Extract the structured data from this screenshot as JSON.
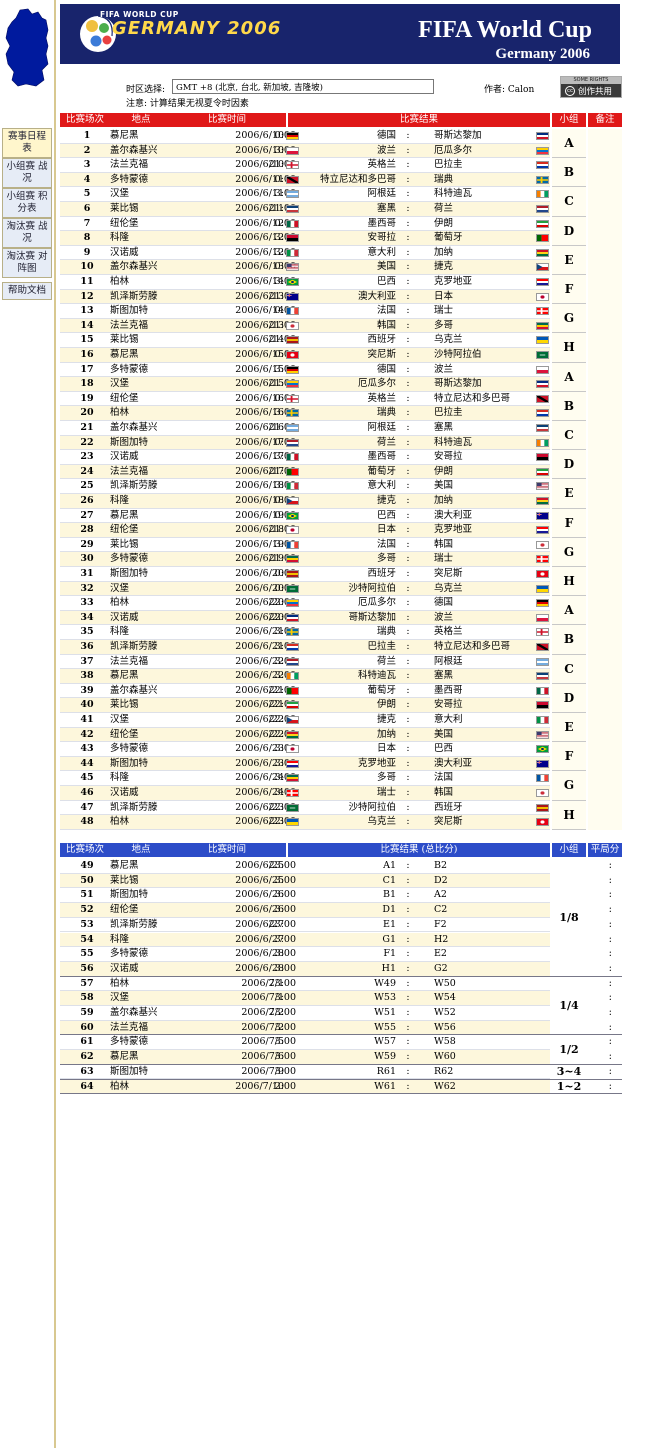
{
  "sidebar": {
    "items": [
      {
        "label": "赛事日程表",
        "active": true
      },
      {
        "label": "小组赛 战况"
      },
      {
        "label": "小组赛 积分表"
      },
      {
        "label": "淘汰赛 战况"
      },
      {
        "label": "淘汰赛 对阵图"
      },
      {
        "label": "帮助文档"
      }
    ]
  },
  "header": {
    "logo_top": "FIFA WORLD CUP",
    "logo_main": "GERMANY 2006",
    "title": "FIFA World Cup",
    "subtitle": "Germany 2006"
  },
  "info": {
    "tz_label": "时区选择:",
    "tz_value": "GMT +8 (北京, 台北, 新加坡, 吉隆坡)",
    "note": "注意: 计算结果无视夏令时因素",
    "author": "作者: Calon",
    "cc_top": "SOME RIGHTS RESERVED",
    "cc_icon": "cc",
    "cc_text": "创作共用"
  },
  "group_header": {
    "num": "比赛场次",
    "venue": "地点",
    "time": "比赛时间",
    "result": "比赛结果",
    "group": "小组",
    "note": "备注"
  },
  "ko_header": {
    "num": "比赛场次",
    "venue": "地点",
    "time": "比赛时间",
    "result": "比赛结果 (总比分)",
    "group": "小组",
    "note": "平局分"
  },
  "group_matches": [
    {
      "n": "1",
      "v": "慕尼黑",
      "d": "2006/6/10",
      "t": "0:00",
      "a": "德国",
      "b": "哥斯达黎加",
      "fa": "ger",
      "fb": "crc"
    },
    {
      "n": "2",
      "v": "盖尔森基兴",
      "d": "2006/6/10",
      "t": "3:00",
      "a": "波兰",
      "b": "厄瓜多尔",
      "fa": "pol",
      "fb": "ecu"
    },
    {
      "n": "3",
      "v": "法兰克福",
      "d": "2006/6/10",
      "t": "21:00",
      "a": "英格兰",
      "b": "巴拉圭",
      "fa": "eng",
      "fb": "par"
    },
    {
      "n": "4",
      "v": "多特蒙德",
      "d": "2006/6/11",
      "t": "0:00",
      "a": "特立尼达和多巴哥",
      "b": "瑞典",
      "fa": "tri",
      "fb": "swe"
    },
    {
      "n": "5",
      "v": "汉堡",
      "d": "2006/6/11",
      "t": "3:00",
      "a": "阿根廷",
      "b": "科特迪瓦",
      "fa": "arg",
      "fb": "civ"
    },
    {
      "n": "6",
      "v": "莱比锡",
      "d": "2006/6/11",
      "t": "21:00",
      "a": "塞黑",
      "b": "荷兰",
      "fa": "scg",
      "fb": "ned"
    },
    {
      "n": "7",
      "v": "纽伦堡",
      "d": "2006/6/12",
      "t": "0:00",
      "a": "墨西哥",
      "b": "伊朗",
      "fa": "mex",
      "fb": "irn"
    },
    {
      "n": "8",
      "v": "科隆",
      "d": "2006/6/12",
      "t": "3:00",
      "a": "安哥拉",
      "b": "葡萄牙",
      "fa": "ang",
      "fb": "por"
    },
    {
      "n": "9",
      "v": "汉诺威",
      "d": "2006/6/12",
      "t": "3:00",
      "a": "意大利",
      "b": "加纳",
      "fa": "ita",
      "fb": "gha"
    },
    {
      "n": "10",
      "v": "盖尔森基兴",
      "d": "2006/6/13",
      "t": "0:00",
      "a": "美国",
      "b": "捷克",
      "fa": "usa",
      "fb": "cze"
    },
    {
      "n": "11",
      "v": "柏林",
      "d": "2006/6/14",
      "t": "3:00",
      "a": "巴西",
      "b": "克罗地亚",
      "fa": "bra",
      "fb": "cro"
    },
    {
      "n": "12",
      "v": "凯泽斯劳滕",
      "d": "2006/6/13",
      "t": "21:00",
      "a": "澳大利亚",
      "b": "日本",
      "fa": "aus",
      "fb": "jpn"
    },
    {
      "n": "13",
      "v": "斯图加特",
      "d": "2006/6/14",
      "t": "0:00",
      "a": "法国",
      "b": "瑞士",
      "fa": "fra",
      "fb": "sui"
    },
    {
      "n": "14",
      "v": "法兰克福",
      "d": "2006/6/13",
      "t": "21:00",
      "a": "韩国",
      "b": "多哥",
      "fa": "kor",
      "fb": "tog"
    },
    {
      "n": "15",
      "v": "莱比锡",
      "d": "2006/6/14",
      "t": "21:00",
      "a": "西班牙",
      "b": "乌克兰",
      "fa": "esp",
      "fb": "ukr"
    },
    {
      "n": "16",
      "v": "慕尼黑",
      "d": "2006/6/15",
      "t": "0:00",
      "a": "突尼斯",
      "b": "沙特阿拉伯",
      "fa": "tun",
      "fb": "ksa"
    },
    {
      "n": "17",
      "v": "多特蒙德",
      "d": "2006/6/15",
      "t": "3:00",
      "a": "德国",
      "b": "波兰",
      "fa": "ger",
      "fb": "pol"
    },
    {
      "n": "18",
      "v": "汉堡",
      "d": "2006/6/15",
      "t": "21:00",
      "a": "厄瓜多尔",
      "b": "哥斯达黎加",
      "fa": "ecu",
      "fb": "crc"
    },
    {
      "n": "19",
      "v": "纽伦堡",
      "d": "2006/6/16",
      "t": "0:00",
      "a": "英格兰",
      "b": "特立尼达和多巴哥",
      "fa": "eng",
      "fb": "tri"
    },
    {
      "n": "20",
      "v": "柏林",
      "d": "2006/6/16",
      "t": "3:00",
      "a": "瑞典",
      "b": "巴拉圭",
      "fa": "swe",
      "fb": "par"
    },
    {
      "n": "21",
      "v": "盖尔森基兴",
      "d": "2006/6/16",
      "t": "21:00",
      "a": "阿根廷",
      "b": "塞黑",
      "fa": "arg",
      "fb": "scg"
    },
    {
      "n": "22",
      "v": "斯图加特",
      "d": "2006/6/17",
      "t": "0:00",
      "a": "荷兰",
      "b": "科特迪瓦",
      "fa": "ned",
      "fb": "civ"
    },
    {
      "n": "23",
      "v": "汉诺威",
      "d": "2006/6/17",
      "t": "3:00",
      "a": "墨西哥",
      "b": "安哥拉",
      "fa": "mex",
      "fb": "ang"
    },
    {
      "n": "24",
      "v": "法兰克福",
      "d": "2006/6/17",
      "t": "21:00",
      "a": "葡萄牙",
      "b": "伊朗",
      "fa": "por",
      "fb": "irn"
    },
    {
      "n": "25",
      "v": "凯泽斯劳滕",
      "d": "2006/6/18",
      "t": "3:00",
      "a": "意大利",
      "b": "美国",
      "fa": "ita",
      "fb": "usa"
    },
    {
      "n": "26",
      "v": "科隆",
      "d": "2006/6/18",
      "t": "0:00",
      "a": "捷克",
      "b": "加纳",
      "fa": "cze",
      "fb": "gha"
    },
    {
      "n": "27",
      "v": "慕尼黑",
      "d": "2006/6/19",
      "t": "0:00",
      "a": "巴西",
      "b": "澳大利亚",
      "fa": "bra",
      "fb": "aus"
    },
    {
      "n": "28",
      "v": "纽伦堡",
      "d": "2006/6/18",
      "t": "21:00",
      "a": "日本",
      "b": "克罗地亚",
      "fa": "jpn",
      "fb": "cro"
    },
    {
      "n": "29",
      "v": "莱比锡",
      "d": "2006/6/19",
      "t": "3:00",
      "a": "法国",
      "b": "韩国",
      "fa": "fra",
      "fb": "kor"
    },
    {
      "n": "30",
      "v": "多特蒙德",
      "d": "2006/6/19",
      "t": "21:00",
      "a": "多哥",
      "b": "瑞士",
      "fa": "tog",
      "fb": "sui"
    },
    {
      "n": "31",
      "v": "斯图加特",
      "d": "2006/6/20",
      "t": "0:00",
      "a": "西班牙",
      "b": "突尼斯",
      "fa": "esp",
      "fb": "tun"
    },
    {
      "n": "32",
      "v": "汉堡",
      "d": "2006/6/20",
      "t": "0:00",
      "a": "沙特阿拉伯",
      "b": "乌克兰",
      "fa": "ksa",
      "fb": "ukr"
    },
    {
      "n": "33",
      "v": "柏林",
      "d": "2006/6/20",
      "t": "22:00",
      "a": "厄瓜多尔",
      "b": "德国",
      "fa": "ecu",
      "fb": "ger"
    },
    {
      "n": "34",
      "v": "汉诺威",
      "d": "2006/6/20",
      "t": "22:00",
      "a": "哥斯达黎加",
      "b": "波兰",
      "fa": "crc",
      "fb": "pol"
    },
    {
      "n": "35",
      "v": "科隆",
      "d": "2006/6/21",
      "t": "3:00",
      "a": "瑞典",
      "b": "英格兰",
      "fa": "swe",
      "fb": "eng"
    },
    {
      "n": "36",
      "v": "凯泽斯劳滕",
      "d": "2006/6/21",
      "t": "3:00",
      "a": "巴拉圭",
      "b": "特立尼达和多巴哥",
      "fa": "par",
      "fb": "tri"
    },
    {
      "n": "37",
      "v": "法兰克福",
      "d": "2006/6/22",
      "t": "3:00",
      "a": "荷兰",
      "b": "阿根廷",
      "fa": "ned",
      "fb": "arg"
    },
    {
      "n": "38",
      "v": "慕尼黑",
      "d": "2006/6/22",
      "t": "3:00",
      "a": "科特迪瓦",
      "b": "塞黑",
      "fa": "civ",
      "fb": "scg"
    },
    {
      "n": "39",
      "v": "盖尔森基兴",
      "d": "2006/6/21",
      "t": "22:00",
      "a": "葡萄牙",
      "b": "墨西哥",
      "fa": "por",
      "fb": "mex"
    },
    {
      "n": "40",
      "v": "莱比锡",
      "d": "2006/6/21",
      "t": "22:00",
      "a": "伊朗",
      "b": "安哥拉",
      "fa": "irn",
      "fb": "ang"
    },
    {
      "n": "41",
      "v": "汉堡",
      "d": "2006/6/22",
      "t": "22:00",
      "a": "捷克",
      "b": "意大利",
      "fa": "cze",
      "fb": "ita"
    },
    {
      "n": "42",
      "v": "纽伦堡",
      "d": "2006/6/22",
      "t": "22:00",
      "a": "加纳",
      "b": "美国",
      "fa": "gha",
      "fb": "usa"
    },
    {
      "n": "43",
      "v": "多特蒙德",
      "d": "2006/6/23",
      "t": "3:00",
      "a": "日本",
      "b": "巴西",
      "fa": "jpn",
      "fb": "bra"
    },
    {
      "n": "44",
      "v": "斯图加特",
      "d": "2006/6/23",
      "t": "3:00",
      "a": "克罗地亚",
      "b": "澳大利亚",
      "fa": "cro",
      "fb": "aus"
    },
    {
      "n": "45",
      "v": "科隆",
      "d": "2006/6/24",
      "t": "3:00",
      "a": "多哥",
      "b": "法国",
      "fa": "tog",
      "fb": "fra"
    },
    {
      "n": "46",
      "v": "汉诺威",
      "d": "2006/6/24",
      "t": "3:00",
      "a": "瑞士",
      "b": "韩国",
      "fa": "sui",
      "fb": "kor"
    },
    {
      "n": "47",
      "v": "凯泽斯劳滕",
      "d": "2006/6/23",
      "t": "22:00",
      "a": "沙特阿拉伯",
      "b": "西班牙",
      "fa": "ksa",
      "fb": "esp"
    },
    {
      "n": "48",
      "v": "柏林",
      "d": "2006/6/23",
      "t": "22:00",
      "a": "乌克兰",
      "b": "突尼斯",
      "fa": "ukr",
      "fb": "tun"
    }
  ],
  "groups": [
    {
      "label": "A"
    },
    {
      "label": "B"
    },
    {
      "label": "C"
    },
    {
      "label": "D"
    },
    {
      "label": "E"
    },
    {
      "label": "F"
    },
    {
      "label": "G"
    },
    {
      "label": "H"
    },
    {
      "label": "A"
    },
    {
      "label": "B"
    },
    {
      "label": "C"
    },
    {
      "label": "D"
    },
    {
      "label": "E"
    },
    {
      "label": "F"
    },
    {
      "label": "G"
    },
    {
      "label": "H"
    },
    {
      "label": "A"
    },
    {
      "label": "B"
    },
    {
      "label": "C"
    },
    {
      "label": "D"
    },
    {
      "label": "E"
    },
    {
      "label": "F"
    },
    {
      "label": "G"
    },
    {
      "label": "H"
    }
  ],
  "ko_matches": [
    {
      "n": "49",
      "v": "慕尼黑",
      "d": "2006/6/25",
      "t": "23:00",
      "a": "A1",
      "b": "B2"
    },
    {
      "n": "50",
      "v": "莱比锡",
      "d": "2006/6/25",
      "t": "3:00",
      "a": "C1",
      "b": "D2"
    },
    {
      "n": "51",
      "v": "斯图加特",
      "d": "2006/6/26",
      "t": "3:00",
      "a": "B1",
      "b": "A2"
    },
    {
      "n": "52",
      "v": "纽伦堡",
      "d": "2006/6/26",
      "t": "3:00",
      "a": "D1",
      "b": "C2"
    },
    {
      "n": "53",
      "v": "凯泽斯劳滕",
      "d": "2006/6/27",
      "t": "23:00",
      "a": "E1",
      "b": "F2"
    },
    {
      "n": "54",
      "v": "科隆",
      "d": "2006/6/27",
      "t": "3:00",
      "a": "G1",
      "b": "H2"
    },
    {
      "n": "55",
      "v": "多特蒙德",
      "d": "2006/6/28",
      "t": "3:00",
      "a": "F1",
      "b": "E2"
    },
    {
      "n": "56",
      "v": "汉诺威",
      "d": "2006/6/28",
      "t": "3:00",
      "a": "H1",
      "b": "G2"
    },
    {
      "n": "57",
      "v": "柏林",
      "d": "2006/7/1",
      "t": "23:00",
      "a": "W49",
      "b": "W50"
    },
    {
      "n": "58",
      "v": "汉堡",
      "d": "2006/7/1",
      "t": "3:00",
      "a": "W53",
      "b": "W54"
    },
    {
      "n": "59",
      "v": "盖尔森基兴",
      "d": "2006/7/2",
      "t": "23:00",
      "a": "W51",
      "b": "W52"
    },
    {
      "n": "60",
      "v": "法兰克福",
      "d": "2006/7/2",
      "t": "3:00",
      "a": "W55",
      "b": "W56"
    },
    {
      "n": "61",
      "v": "多特蒙德",
      "d": "2006/7/5",
      "t": "3:00",
      "a": "W57",
      "b": "W58"
    },
    {
      "n": "62",
      "v": "慕尼黑",
      "d": "2006/7/6",
      "t": "3:00",
      "a": "W59",
      "b": "W60"
    },
    {
      "n": "63",
      "v": "斯图加特",
      "d": "2006/7/9",
      "t": "3:00",
      "a": "R61",
      "b": "R62"
    },
    {
      "n": "64",
      "v": "柏林",
      "d": "2006/7/10",
      "t": "2:00",
      "a": "W61",
      "b": "W62"
    }
  ],
  "stages": [
    {
      "label": "1/8"
    },
    {
      "label": "1/4"
    },
    {
      "label": "1/2"
    },
    {
      "label": "3~4"
    },
    {
      "label": "1~2"
    }
  ],
  "colon": ":",
  "flags": {
    "ger": [
      "#000000",
      "#dd0000",
      "#ffce00",
      "h"
    ],
    "crc": [
      "#002b7f",
      "#ffffff",
      "#ce1126",
      "h"
    ],
    "pol": [
      "#ffffff",
      "#dc143c",
      "",
      "h2"
    ],
    "ecu": [
      "#ffd100",
      "#0072ce",
      "#ef3340",
      "h"
    ],
    "eng": [
      "#ffffff",
      "#cf142b",
      "",
      "cross"
    ],
    "par": [
      "#d52b1e",
      "#ffffff",
      "#0038a8",
      "h"
    ],
    "tri": [
      "#ce1126",
      "#000000",
      "#ffffff",
      "diag"
    ],
    "swe": [
      "#006aa7",
      "#fecc00",
      "",
      "cross"
    ],
    "arg": [
      "#74acdf",
      "#ffffff",
      "#74acdf",
      "h"
    ],
    "civ": [
      "#f77f00",
      "#ffffff",
      "#009e60",
      "v"
    ],
    "scg": [
      "#0c4076",
      "#ffffff",
      "#c6363c",
      "h"
    ],
    "ned": [
      "#ae1c28",
      "#ffffff",
      "#21468b",
      "h"
    ],
    "mex": [
      "#006847",
      "#ffffff",
      "#ce1126",
      "v"
    ],
    "irn": [
      "#239f40",
      "#ffffff",
      "#da0000",
      "h"
    ],
    "ang": [
      "#cc092f",
      "#000000",
      "",
      "h2"
    ],
    "por": [
      "#006600",
      "#ff0000",
      "",
      "v2"
    ],
    "ita": [
      "#009246",
      "#ffffff",
      "#ce2b37",
      "v"
    ],
    "gha": [
      "#ce1126",
      "#fcd116",
      "#006b3f",
      "h"
    ],
    "usa": [
      "#b22234",
      "#ffffff",
      "#3c3b6e",
      "us"
    ],
    "cze": [
      "#ffffff",
      "#d7141a",
      "#11457e",
      "h2t"
    ],
    "bra": [
      "#009c3b",
      "#ffdf00",
      "#002776",
      "dia"
    ],
    "cro": [
      "#ff0000",
      "#ffffff",
      "#171796",
      "h"
    ],
    "aus": [
      "#00008b",
      "#ffffff",
      "#ff0000",
      "uk"
    ],
    "jpn": [
      "#ffffff",
      "#bc002d",
      "",
      "dot"
    ],
    "fra": [
      "#0055a4",
      "#ffffff",
      "#ef4135",
      "v"
    ],
    "sui": [
      "#ff0000",
      "#ffffff",
      "",
      "cross"
    ],
    "kor": [
      "#ffffff",
      "#cd2e3a",
      "#0047a0",
      "dot"
    ],
    "tog": [
      "#006a4e",
      "#ffce00",
      "#d21034",
      "h"
    ],
    "esp": [
      "#aa151b",
      "#f1bf00",
      "#aa151b",
      "h"
    ],
    "ukr": [
      "#0057b7",
      "#ffd700",
      "",
      "h2"
    ],
    "tun": [
      "#e70013",
      "#ffffff",
      "",
      "dot"
    ],
    "ksa": [
      "#006c35",
      "#ffffff",
      "",
      "h2s"
    ]
  }
}
